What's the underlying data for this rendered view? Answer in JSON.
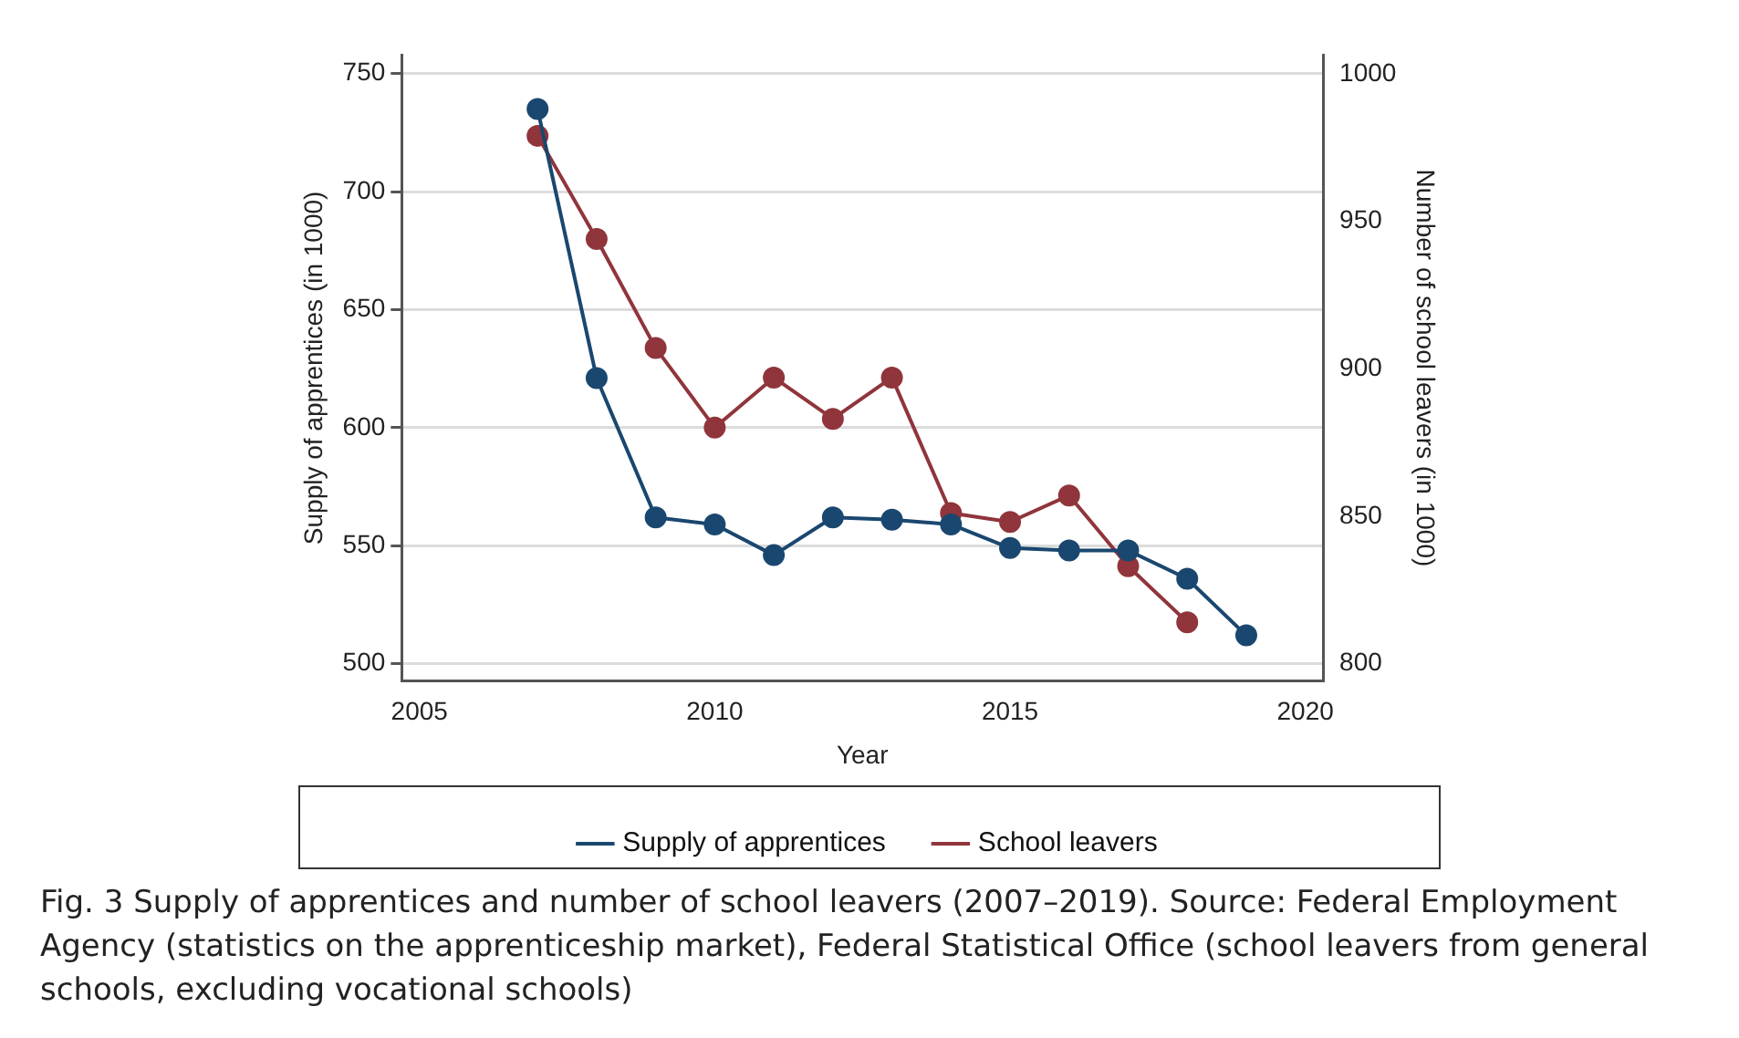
{
  "chart_data": {
    "type": "line",
    "xlabel": "Year",
    "ylabel": "Supply of apprentices (in 1000)",
    "y2label": "Number of school leavers (in 1000)",
    "xlim": [
      2004.7,
      2020.3
    ],
    "xticks": [
      2005,
      2010,
      2015,
      2020
    ],
    "ylim": [
      492.6,
      758
    ],
    "yticks": [
      500,
      550,
      600,
      650,
      700,
      750
    ],
    "y2lim": [
      794,
      1006.5
    ],
    "y2ticks": [
      800,
      850,
      900,
      950,
      1000
    ],
    "grid": "y",
    "legend": "bottom",
    "marker": "circle",
    "line_style": "solid",
    "series": [
      {
        "name": "Supply of apprentices",
        "color": "#1a476f",
        "x": [
          2007,
          2008,
          2009,
          2010,
          2011,
          2012,
          2013,
          2014,
          2015,
          2016,
          2017,
          2018,
          2019
        ],
        "values": [
          735,
          621,
          562,
          559,
          546,
          562,
          561,
          559,
          549,
          548,
          548,
          536,
          512
        ]
      },
      {
        "name": "School leavers",
        "color": "#90353b",
        "axis": "y2",
        "x": [
          2007,
          2008,
          2009,
          2010,
          2011,
          2012,
          2013,
          2014,
          2015,
          2016,
          2017,
          2018
        ],
        "values": [
          979,
          944,
          907,
          880,
          897,
          883,
          897,
          851,
          848,
          857,
          833,
          814
        ]
      }
    ],
    "annotations": [
      "Fig. 3  Supply of apprentices and number of school leavers (2007–2019). Source: Federal Employment Agency (statistics on the apprenticeship market), Federal Statistical Office (school leavers from general schools, excluding vocational schools)"
    ]
  }
}
